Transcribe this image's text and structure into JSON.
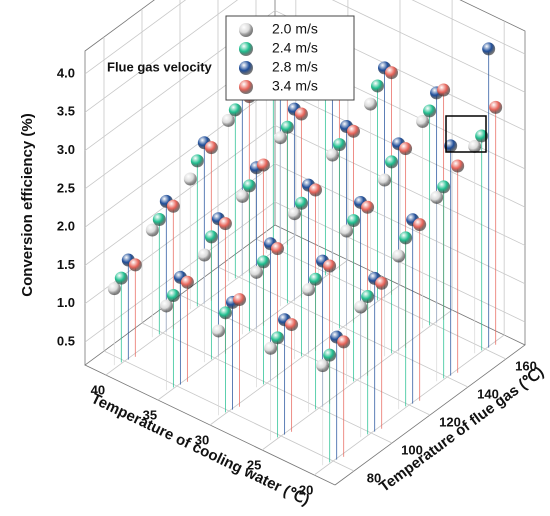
{
  "chart_data": {
    "type": "scatter3d",
    "annotation": "Flue gas velocity",
    "xlabel": "Temperature of cooling water (℃)",
    "ylabel": "Temperature of flue gas (℃)",
    "zlabel": "Conversion efficiency (%)",
    "x": [
      20,
      20,
      20,
      20,
      20,
      25,
      25,
      25,
      25,
      25,
      30,
      30,
      30,
      30,
      30,
      35,
      35,
      35,
      35,
      35,
      40,
      40,
      40,
      40,
      40
    ],
    "y": [
      80,
      100,
      120,
      140,
      160,
      80,
      100,
      120,
      140,
      160,
      80,
      100,
      120,
      140,
      160,
      80,
      100,
      120,
      140,
      160,
      80,
      100,
      120,
      140,
      160
    ],
    "series": [
      {
        "name": "2.0 m/s",
        "color": "#d9d9d9",
        "values": [
          1.5,
          1.9,
          2.2,
          2.6,
          2.9,
          1.4,
          1.8,
          2.2,
          2.5,
          2.9,
          1.3,
          1.7,
          2.1,
          2.5,
          2.8,
          1.3,
          1.6,
          2.0,
          2.4,
          2.7,
          1.2,
          1.6,
          1.9,
          2.3,
          2.7
        ]
      },
      {
        "name": "2.4 m/s",
        "color": "#1fbf8f",
        "values": [
          1.6,
          2.0,
          2.4,
          2.7,
          3.0,
          1.5,
          1.9,
          2.3,
          2.7,
          3.0,
          1.5,
          1.8,
          2.2,
          2.6,
          3.0,
          1.4,
          1.8,
          2.1,
          2.5,
          2.9,
          1.3,
          1.7,
          2.1,
          2.4,
          2.8
        ]
      },
      {
        "name": "2.8 m/s",
        "color": "#1f4e9a",
        "values": [
          1.8,
          2.2,
          2.6,
          3.2,
          4.1,
          1.7,
          2.1,
          2.5,
          2.9,
          3.2,
          1.6,
          2.0,
          2.4,
          2.8,
          3.2,
          1.6,
          2.0,
          2.3,
          2.7,
          3.1,
          1.5,
          1.9,
          2.3,
          2.6,
          3.0
        ]
      },
      {
        "name": "3.4 m/s",
        "color": "#e8645a",
        "values": [
          1.7,
          2.1,
          2.5,
          2.9,
          3.3,
          1.6,
          2.0,
          2.4,
          2.8,
          3.2,
          1.6,
          1.9,
          2.3,
          2.7,
          3.1,
          1.5,
          1.9,
          2.3,
          2.6,
          3.0,
          1.4,
          1.8,
          2.2,
          2.5,
          2.9
        ]
      }
    ],
    "xlim": [
      18,
      42
    ],
    "xticks": [
      20,
      25,
      30,
      35,
      40
    ],
    "ylim": [
      70,
      170
    ],
    "yticks": [
      80,
      100,
      120,
      140,
      160
    ],
    "zlim": [
      0.2,
      4.3
    ],
    "zticks": [
      0.5,
      {
        "value": 1.0,
        "label": "1.0"
      },
      1.5,
      {
        "value": 2.0,
        "label": "2.0"
      },
      2.5,
      {
        "value": 3.0,
        "label": "3.0"
      },
      3.5,
      {
        "value": 4.0,
        "label": "4.0"
      }
    ],
    "grid": true,
    "legend": "top"
  }
}
